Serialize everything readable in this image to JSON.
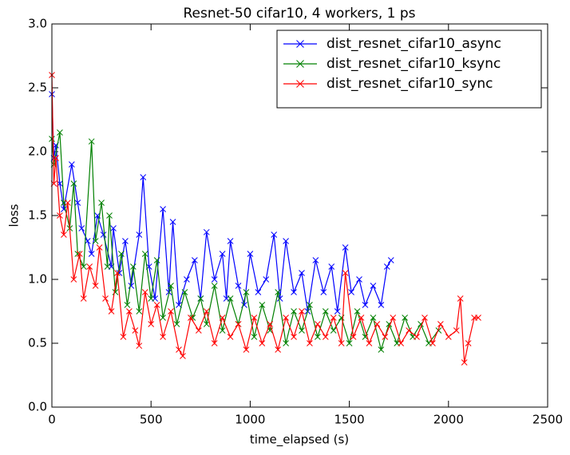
{
  "chart_data": {
    "type": "line",
    "title": "Resnet-50 cifar10, 4 workers, 1 ps",
    "xlabel": "time_elapsed (s)",
    "ylabel": "loss",
    "xlim": [
      0,
      2500
    ],
    "ylim": [
      0,
      3
    ],
    "xticks": [
      0,
      500,
      1000,
      1500,
      2000,
      2500
    ],
    "yticks": [
      {
        "value": 0,
        "label": "0.0"
      },
      0.5,
      {
        "value": 1,
        "label": "1.0"
      },
      1.5,
      {
        "value": 2,
        "label": "2.0"
      },
      2.5,
      {
        "value": 3,
        "label": "3.0"
      }
    ],
    "legend": "upper right",
    "marker": "x",
    "series": [
      {
        "name": "dist_resnet_cifar10_async",
        "color": "#0000ff",
        "x": [
          0,
          10,
          20,
          40,
          60,
          100,
          130,
          150,
          180,
          200,
          230,
          260,
          300,
          310,
          340,
          370,
          400,
          440,
          460,
          490,
          520,
          560,
          590,
          610,
          640,
          680,
          720,
          750,
          780,
          820,
          860,
          880,
          900,
          940,
          970,
          1000,
          1040,
          1080,
          1120,
          1150,
          1180,
          1220,
          1260,
          1290,
          1330,
          1370,
          1410,
          1440,
          1480,
          1510,
          1550,
          1580,
          1620,
          1660,
          1690,
          1710
        ],
        "values": [
          2.45,
          1.95,
          2.05,
          1.75,
          1.55,
          1.9,
          1.6,
          1.4,
          1.3,
          1.2,
          1.5,
          1.35,
          1.1,
          1.4,
          1.05,
          1.3,
          0.95,
          1.35,
          1.8,
          1.1,
          0.85,
          1.55,
          0.9,
          1.45,
          0.8,
          1.0,
          1.15,
          0.85,
          1.37,
          1.0,
          1.2,
          0.85,
          1.3,
          0.95,
          0.8,
          1.2,
          0.9,
          1.0,
          1.35,
          0.85,
          1.3,
          0.9,
          1.05,
          0.75,
          1.15,
          0.9,
          1.1,
          0.75,
          1.25,
          0.9,
          1.0,
          0.8,
          0.95,
          0.8,
          1.1,
          1.15
        ]
      },
      {
        "name": "dist_resnet_cifar10_ksync",
        "color": "#008000",
        "x": [
          0,
          10,
          40,
          60,
          90,
          110,
          130,
          160,
          200,
          220,
          250,
          280,
          290,
          320,
          350,
          380,
          410,
          440,
          470,
          500,
          530,
          560,
          600,
          630,
          670,
          710,
          750,
          780,
          820,
          860,
          900,
          940,
          980,
          1020,
          1060,
          1100,
          1140,
          1180,
          1220,
          1260,
          1300,
          1340,
          1380,
          1420,
          1460,
          1500,
          1540,
          1580,
          1620,
          1660,
          1700,
          1740,
          1780,
          1820,
          1860,
          1900,
          1950
        ],
        "values": [
          2.1,
          1.9,
          2.15,
          1.6,
          1.4,
          1.75,
          1.2,
          1.1,
          2.08,
          1.3,
          1.6,
          1.1,
          1.5,
          0.9,
          1.2,
          0.8,
          1.1,
          0.75,
          1.2,
          0.85,
          1.15,
          0.7,
          0.95,
          0.65,
          0.9,
          0.7,
          0.85,
          0.65,
          0.95,
          0.6,
          0.85,
          0.65,
          0.9,
          0.55,
          0.8,
          0.6,
          0.9,
          0.5,
          0.75,
          0.6,
          0.8,
          0.55,
          0.75,
          0.6,
          0.7,
          0.5,
          0.75,
          0.55,
          0.7,
          0.45,
          0.65,
          0.5,
          0.7,
          0.55,
          0.65,
          0.5,
          0.6
        ]
      },
      {
        "name": "dist_resnet_cifar10_sync",
        "color": "#ff0000",
        "x": [
          0,
          10,
          20,
          40,
          60,
          80,
          110,
          140,
          160,
          190,
          220,
          240,
          270,
          300,
          330,
          360,
          390,
          420,
          440,
          470,
          500,
          530,
          560,
          600,
          640,
          660,
          700,
          740,
          780,
          820,
          860,
          900,
          940,
          980,
          1020,
          1060,
          1100,
          1140,
          1180,
          1220,
          1260,
          1300,
          1340,
          1380,
          1420,
          1460,
          1480,
          1520,
          1560,
          1600,
          1640,
          1680,
          1720,
          1760,
          1800,
          1840,
          1880,
          1920,
          1960,
          2000,
          2040,
          2060,
          2080,
          2100,
          2130,
          2150
        ],
        "values": [
          2.6,
          1.75,
          1.95,
          1.5,
          1.35,
          1.6,
          1.0,
          1.2,
          0.85,
          1.1,
          0.95,
          1.25,
          0.85,
          0.75,
          1.05,
          0.55,
          0.75,
          0.6,
          0.48,
          0.9,
          0.65,
          0.8,
          0.55,
          0.75,
          0.45,
          0.4,
          0.7,
          0.6,
          0.75,
          0.5,
          0.7,
          0.55,
          0.65,
          0.45,
          0.7,
          0.5,
          0.65,
          0.45,
          0.7,
          0.55,
          0.75,
          0.5,
          0.65,
          0.55,
          0.7,
          0.5,
          1.05,
          0.55,
          0.7,
          0.5,
          0.65,
          0.55,
          0.7,
          0.5,
          0.6,
          0.55,
          0.7,
          0.5,
          0.65,
          0.55,
          0.6,
          0.85,
          0.35,
          0.5,
          0.7,
          0.7
        ]
      }
    ]
  }
}
